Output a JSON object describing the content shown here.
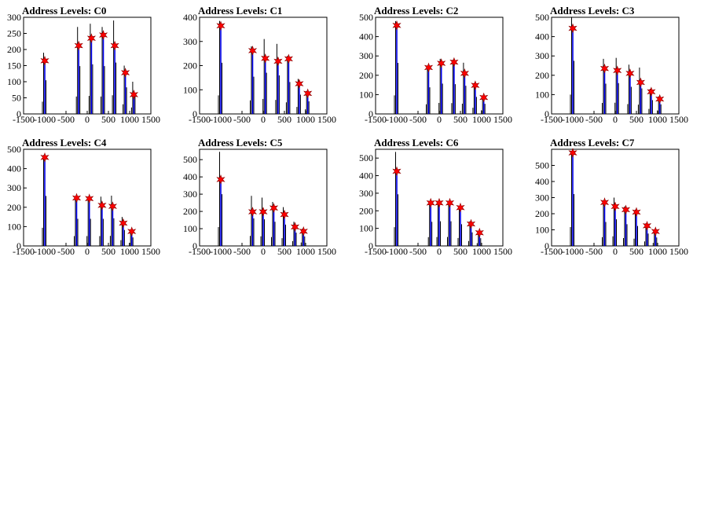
{
  "canvas": {
    "background": "#ffffff"
  },
  "chart_data": [
    {
      "type": "histogram",
      "title": "Address Levels: C0",
      "xlim": [
        -1500,
        1500
      ],
      "ylim": [
        0,
        300
      ],
      "xticks": [
        "-1500",
        "-1000",
        "-500",
        "0",
        "500",
        "1000",
        "1500"
      ],
      "yticks": [
        "0",
        "50",
        "100",
        "150",
        "200",
        "250",
        "300"
      ],
      "peaks_x": [
        -1000,
        -200,
        100,
        380,
        650,
        900,
        1100
      ],
      "peaks_y": [
        165,
        212,
        235,
        245,
        212,
        128,
        60
      ],
      "outline_y": [
        190,
        270,
        280,
        270,
        290,
        150,
        100
      ]
    },
    {
      "type": "histogram",
      "title": "Address Levels: C1",
      "xlim": [
        -1500,
        1500
      ],
      "ylim": [
        0,
        400
      ],
      "xticks": [
        "-1500",
        "-1000",
        "-500",
        "0",
        "500",
        "1000",
        "1500"
      ],
      "yticks": [
        "0",
        "100",
        "200",
        "300",
        "400"
      ],
      "peaks_x": [
        -1000,
        -250,
        50,
        350,
        600,
        850,
        1050
      ],
      "peaks_y": [
        365,
        262,
        230,
        218,
        228,
        125,
        85
      ],
      "outline_y": [
        385,
        280,
        310,
        290,
        240,
        145,
        95
      ]
    },
    {
      "type": "histogram",
      "title": "Address Levels: C2",
      "xlim": [
        -1500,
        1500
      ],
      "ylim": [
        0,
        500
      ],
      "xticks": [
        "-1500",
        "-1000",
        "-500",
        "0",
        "500",
        "1000",
        "1500"
      ],
      "yticks": [
        "0",
        "100",
        "200",
        "300",
        "400",
        "500"
      ],
      "peaks_x": [
        -1000,
        -250,
        50,
        350,
        600,
        850,
        1050
      ],
      "peaks_y": [
        458,
        240,
        262,
        268,
        210,
        148,
        85
      ],
      "outline_y": [
        480,
        250,
        285,
        280,
        265,
        160,
        95
      ]
    },
    {
      "type": "histogram",
      "title": "Address Levels: C3",
      "xlim": [
        -1500,
        1500
      ],
      "ylim": [
        0,
        500
      ],
      "xticks": [
        "-1500",
        "-1000",
        "-500",
        "0",
        "500",
        "1000",
        "1500"
      ],
      "yticks": [
        "0",
        "100",
        "200",
        "300",
        "400",
        "500"
      ],
      "peaks_x": [
        -1000,
        -250,
        50,
        350,
        600,
        850,
        1050
      ],
      "peaks_y": [
        443,
        235,
        225,
        210,
        163,
        115,
        77
      ],
      "outline_y": [
        500,
        285,
        290,
        255,
        240,
        130,
        90
      ]
    },
    {
      "type": "histogram",
      "title": "Address Levels: C4",
      "xlim": [
        -1500,
        1500
      ],
      "ylim": [
        0,
        500
      ],
      "xticks": [
        "-1500",
        "-1000",
        "-500",
        "0",
        "500",
        "1000",
        "1500"
      ],
      "yticks": [
        "0",
        "100",
        "200",
        "300",
        "400",
        "500"
      ],
      "peaks_x": [
        -1000,
        -250,
        50,
        350,
        600,
        850,
        1050
      ],
      "peaks_y": [
        458,
        248,
        245,
        210,
        205,
        118,
        75
      ],
      "outline_y": [
        470,
        255,
        255,
        255,
        260,
        150,
        80
      ]
    },
    {
      "type": "histogram",
      "title": "Address Levels: C5",
      "xlim": [
        -1500,
        1500
      ],
      "ylim": [
        0,
        560
      ],
      "xticks": [
        "-1500",
        "-1000",
        "-500",
        "0",
        "500",
        "1000",
        "1500"
      ],
      "yticks": [
        "0",
        "100",
        "200",
        "300",
        "400",
        "500"
      ],
      "peaks_x": [
        -1000,
        -250,
        0,
        250,
        500,
        750,
        950
      ],
      "peaks_y": [
        385,
        198,
        198,
        220,
        182,
        110,
        85
      ],
      "outline_y": [
        545,
        290,
        280,
        255,
        225,
        140,
        100
      ]
    },
    {
      "type": "histogram",
      "title": "Address Levels: C6",
      "xlim": [
        -1500,
        1500
      ],
      "ylim": [
        0,
        550
      ],
      "xticks": [
        "-1500",
        "-1000",
        "-500",
        "0",
        "500",
        "1000",
        "1500"
      ],
      "yticks": [
        "0",
        "100",
        "200",
        "300",
        "400",
        "500"
      ],
      "peaks_x": [
        -1000,
        -200,
        0,
        250,
        500,
        750,
        950
      ],
      "peaks_y": [
        425,
        245,
        245,
        245,
        218,
        125,
        75
      ],
      "outline_y": [
        535,
        250,
        255,
        255,
        225,
        140,
        80
      ]
    },
    {
      "type": "histogram",
      "title": "Address Levels: C7",
      "xlim": [
        -1500,
        1500
      ],
      "ylim": [
        0,
        600
      ],
      "xticks": [
        "-1500",
        "-1000",
        "-500",
        "0",
        "500",
        "1000",
        "1500"
      ],
      "yticks": [
        "0",
        "100",
        "200",
        "300",
        "400",
        "500"
      ],
      "peaks_x": [
        -1000,
        -250,
        0,
        250,
        500,
        750,
        950
      ],
      "peaks_y": [
        578,
        270,
        245,
        225,
        210,
        125,
        90
      ],
      "outline_y": [
        585,
        270,
        300,
        245,
        225,
        140,
        95
      ]
    }
  ]
}
